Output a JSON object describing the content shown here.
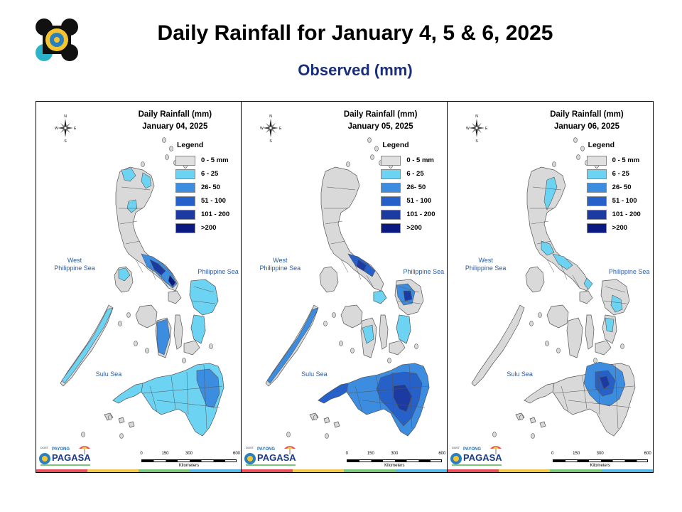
{
  "header": {
    "title": "Daily Rainfall for January 4, 5 & 6, 2025",
    "subtitle": "Observed (mm)"
  },
  "legend": {
    "title": "Legend",
    "items": [
      {
        "label": "0 - 5 mm",
        "color": "#e0e0e0"
      },
      {
        "label": "6 - 25",
        "color": "#6dd3f2"
      },
      {
        "label": "26- 50",
        "color": "#3c8de0"
      },
      {
        "label": "51 - 100",
        "color": "#2660c9"
      },
      {
        "label": "101 - 200",
        "color": "#1b3ba3"
      },
      {
        "label": ">200",
        "color": "#0a1a80"
      }
    ]
  },
  "compass": {
    "n": "N",
    "s": "S",
    "e": "E",
    "w": "W"
  },
  "seas": {
    "west": "West\nPhilippine Sea",
    "philippine": "Philippine Sea",
    "sulu": "Sulu Sea"
  },
  "scale": {
    "ticks": [
      "0",
      "150",
      "300",
      "600"
    ],
    "unit": "Kilometers"
  },
  "branding": {
    "pagasa_text": "PAGASA",
    "payong_text": "PAYONG",
    "dost_text": "DOST"
  },
  "panels": [
    {
      "title_line1": "Daily Rainfall (mm)",
      "title_line2": "January 04, 2025"
    },
    {
      "title_line1": "Daily Rainfall (mm)",
      "title_line2": "January 05, 2025"
    },
    {
      "title_line1": "Daily Rainfall (mm)",
      "title_line2": "January 06, 2025"
    }
  ],
  "colors": {
    "land": "#d9d9d9",
    "boundary": "#555555",
    "strip": [
      "#e8505b",
      "#f2c94c",
      "#7bc67b",
      "#58b7e5"
    ]
  }
}
